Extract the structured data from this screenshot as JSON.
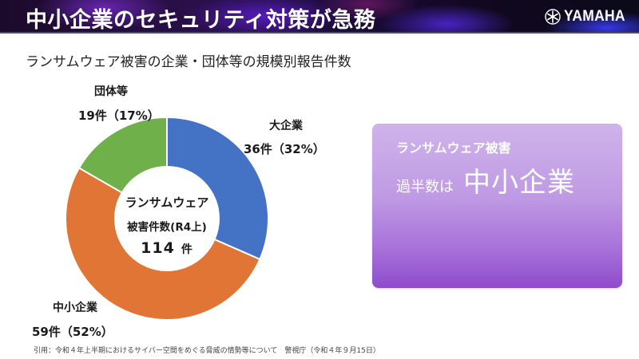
{
  "header": {
    "title": "中小企業のセキュリティ対策が急務",
    "logo_text": "YAMAHA",
    "logo_icon": "yamaha-tuning-forks-icon"
  },
  "subtitle": "ランサムウェア被害の企業・団体等の規模別報告件数",
  "donut": {
    "center": {
      "line1": "ランサムウェア",
      "line2": "被害件数(R4上)",
      "total": "114",
      "unit": "件"
    },
    "labels": {
      "large": {
        "name": "大企業",
        "value": "36件（32%）"
      },
      "sme": {
        "name": "中小企業",
        "value": "59件（52%）"
      },
      "org": {
        "name": "団体等",
        "value": "19件（17%）"
      }
    }
  },
  "callout": {
    "line1": "ランサムウェア被害",
    "line2_prefix": "過半数は",
    "line2_emphasis": "中小企業"
  },
  "citation": "引用：令和４年上半期におけるサイバー空間をめぐる脅威の情勢等について　警視庁（令和４年９月15日）",
  "colors": {
    "large": "#4472C4",
    "sme": "#E07535",
    "org": "#70B04A",
    "callout_top": "#cfb3ea",
    "callout_bottom": "#8f4bcc"
  },
  "chart_data": {
    "type": "pie",
    "variant": "donut",
    "title": "ランサムウェア被害の企業・団体等の規模別報告件数",
    "center_label": "ランサムウェア被害件数(R4上) 114件",
    "total": 114,
    "categories": [
      "大企業",
      "中小企業",
      "団体等"
    ],
    "values": [
      36,
      59,
      19
    ],
    "percentages": [
      32,
      52,
      17
    ],
    "colors": [
      "#4472C4",
      "#E07535",
      "#70B04A"
    ],
    "start_angle": "12 o'clock, clockwise",
    "legend": "none (direct labels)",
    "source": "令和４年上半期におけるサイバー空間をめぐる脅威の情勢等について 警視庁（令和４年９月15日）"
  }
}
